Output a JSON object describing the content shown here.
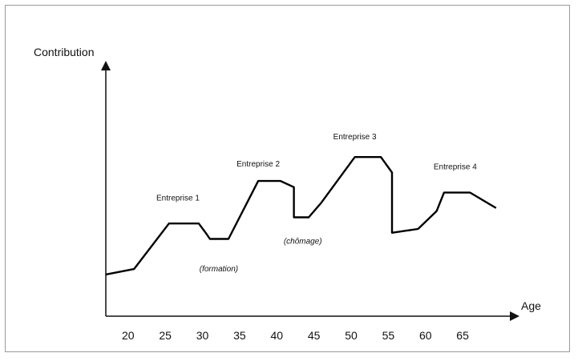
{
  "chart_data": {
    "type": "line",
    "title": "",
    "ylabel": "Contribution",
    "xlabel": "Age",
    "x_ticks": [
      20,
      25,
      30,
      35,
      40,
      45,
      50,
      55,
      60,
      65
    ],
    "xlim": [
      17,
      72
    ],
    "ylim": [
      0,
      100
    ],
    "grid": false,
    "legend": "none",
    "series": [
      {
        "color": "#000000",
        "points": [
          [
            17.0,
            27.0
          ],
          [
            20.8,
            30.5
          ],
          [
            25.5,
            60.0
          ],
          [
            29.5,
            60.0
          ],
          [
            30.5,
            53.5
          ],
          [
            31.0,
            50.0
          ],
          [
            33.5,
            50.0
          ],
          [
            37.5,
            87.5
          ],
          [
            40.5,
            87.5
          ],
          [
            42.3,
            83.5
          ],
          [
            42.3,
            64.0
          ],
          [
            44.3,
            64.0
          ],
          [
            46.0,
            73.5
          ],
          [
            50.5,
            103.0
          ],
          [
            54.0,
            103.0
          ],
          [
            55.5,
            93.0
          ],
          [
            55.5,
            54.0
          ],
          [
            59.0,
            56.5
          ],
          [
            61.5,
            68.0
          ],
          [
            62.5,
            80.0
          ],
          [
            66.0,
            80.0
          ],
          [
            69.5,
            70.0
          ]
        ]
      }
    ],
    "annotations": [
      {
        "text": "Entreprise 1",
        "x": 26.7,
        "y": 75.0,
        "style": "normal"
      },
      {
        "text": "Entreprise 2",
        "x": 37.5,
        "y": 97.0,
        "style": "normal"
      },
      {
        "text": "Entreprise 3",
        "x": 50.5,
        "y": 114.5,
        "style": "normal"
      },
      {
        "text": "Entreprise 4",
        "x": 64.0,
        "y": 95.0,
        "style": "normal"
      },
      {
        "text": "(formation)",
        "x": 32.2,
        "y": 29.0,
        "style": "italic"
      },
      {
        "text": "(chômage)",
        "x": 43.5,
        "y": 47.0,
        "style": "italic"
      }
    ]
  }
}
